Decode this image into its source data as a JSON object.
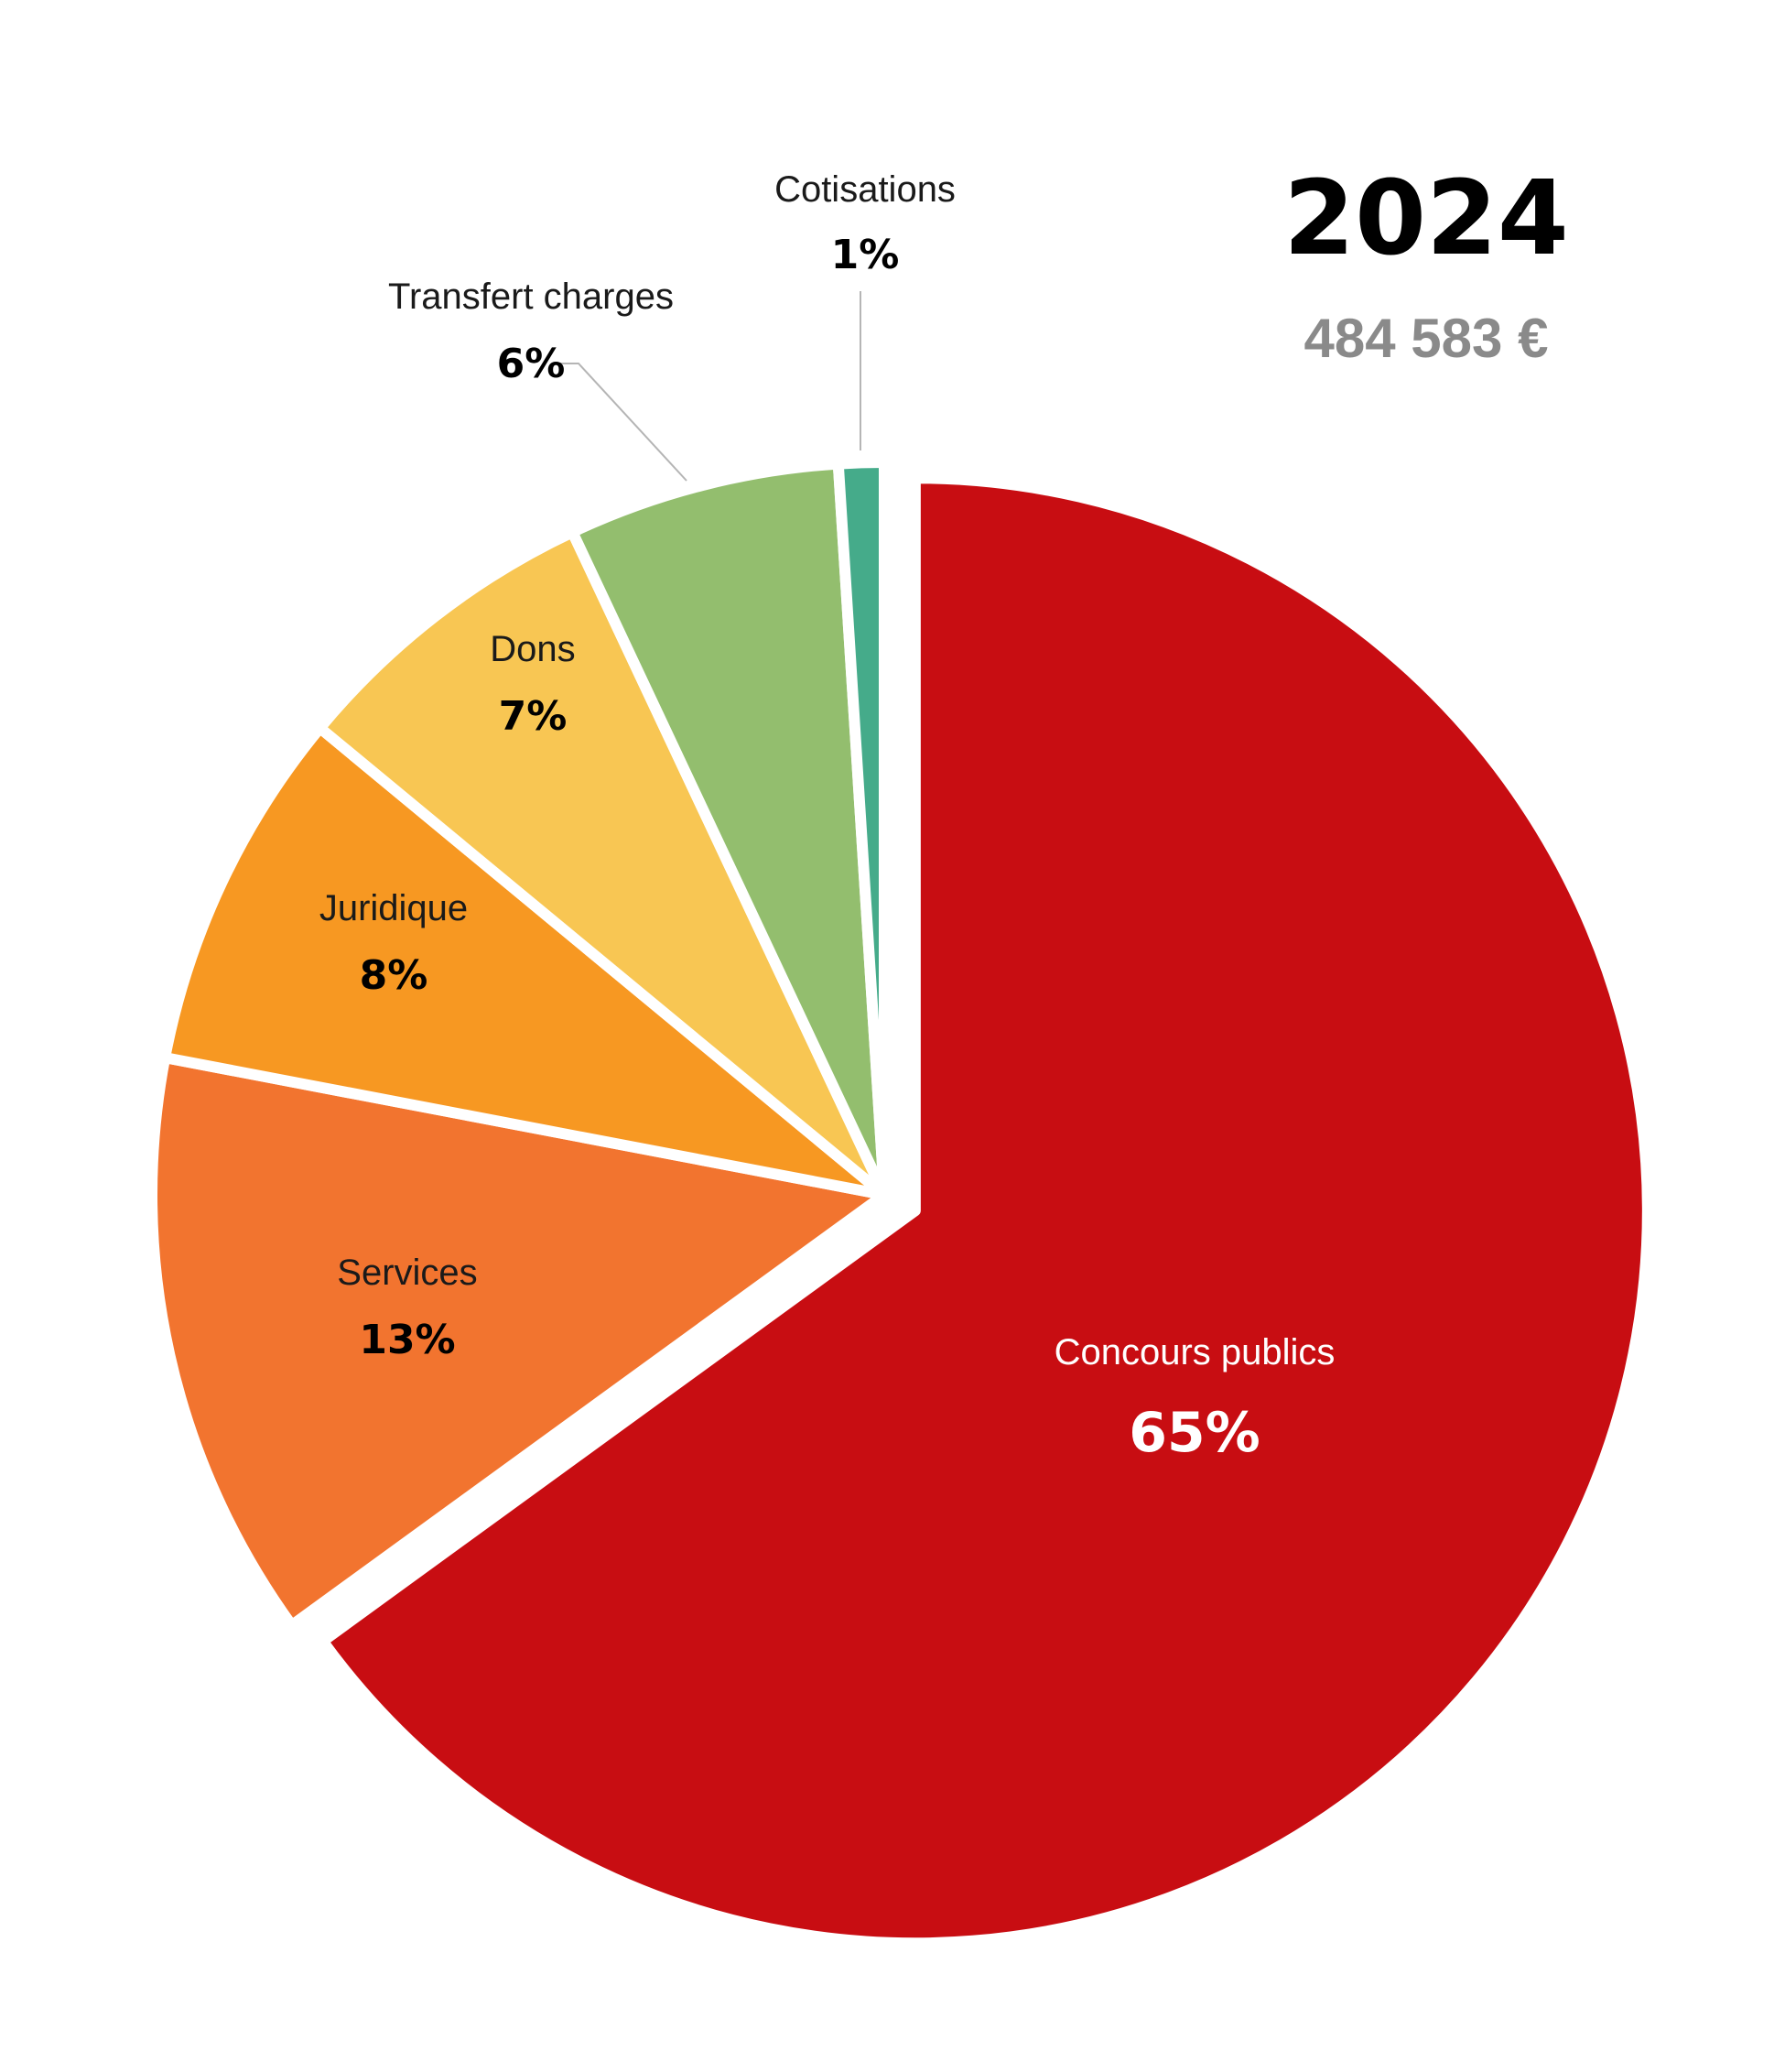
{
  "header": {
    "year": "2024",
    "total": "484 583 €"
  },
  "chart_data": {
    "type": "pie",
    "title": "2024",
    "categories": [
      "Concours publics",
      "Services",
      "Juridique",
      "Dons",
      "Transfert charges",
      "Cotisations"
    ],
    "values": [
      65,
      13,
      8,
      7,
      6,
      1
    ],
    "labels": [
      "65%",
      "13%",
      "8%",
      "7%",
      "6%",
      "1%"
    ],
    "colors": [
      "#c80d12",
      "#f2742f",
      "#f79822",
      "#f8c653",
      "#93be6e",
      "#45ab8a"
    ],
    "exploded": "Concours publics"
  }
}
